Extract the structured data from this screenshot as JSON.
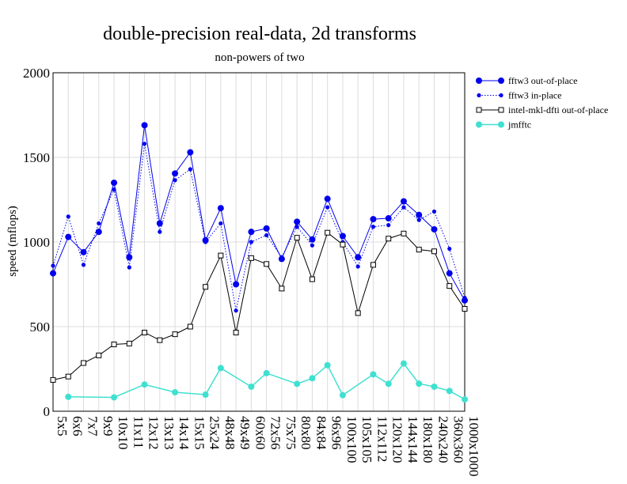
{
  "chart_data": {
    "type": "line",
    "title": "double-precision real-data, 2d transforms",
    "subtitle": "non-powers of two",
    "xlabel": "",
    "ylabel": "speed (mflops)",
    "ylim": [
      0,
      2000
    ],
    "yticks": [
      0,
      500,
      1000,
      1500,
      2000
    ],
    "grid": true,
    "legend_position": "top-right",
    "categories": [
      "5x5",
      "6x6",
      "7x7",
      "9x9",
      "10x10",
      "11x11",
      "12x12",
      "13x13",
      "14x14",
      "15x15",
      "25x24",
      "48x48",
      "49x49",
      "60x60",
      "72x56",
      "75x75",
      "80x80",
      "84x84",
      "96x96",
      "100x100",
      "105x105",
      "112x112",
      "120x120",
      "144x144",
      "180x180",
      "240x240",
      "360x360",
      "1000x1000"
    ],
    "series": [
      {
        "name": "fftw3 out-of-place",
        "color": "#0000ee",
        "style": "solid-large-dot",
        "values": [
          815,
          1030,
          940,
          1060,
          1350,
          910,
          1690,
          1110,
          1405,
          1530,
          1010,
          1200,
          750,
          1060,
          1080,
          900,
          1120,
          1015,
          1255,
          1035,
          910,
          1135,
          1140,
          1240,
          1160,
          1075,
          815,
          655
        ]
      },
      {
        "name": "fftw3 in-place",
        "color": "#0000ee",
        "style": "dotted-small-dot",
        "values": [
          860,
          1150,
          865,
          1110,
          1310,
          850,
          1580,
          1060,
          1365,
          1430,
          1000,
          1110,
          595,
          1000,
          1040,
          910,
          1090,
          980,
          1205,
          1000,
          855,
          1090,
          1100,
          1205,
          1130,
          1180,
          960,
          670
        ]
      },
      {
        "name": "intel-mkl-dfti out-of-place",
        "color": "#000000",
        "style": "solid-open-square",
        "values": [
          185,
          205,
          285,
          330,
          395,
          400,
          465,
          420,
          455,
          500,
          735,
          920,
          465,
          905,
          870,
          725,
          1025,
          780,
          1055,
          985,
          580,
          865,
          1020,
          1050,
          955,
          945,
          740,
          605
        ]
      },
      {
        "name": "jmfftc",
        "color": "#40e0d0",
        "style": "solid-large-dot",
        "values": [
          null,
          85,
          null,
          null,
          82,
          null,
          158,
          null,
          112,
          null,
          98,
          255,
          null,
          145,
          225,
          null,
          162,
          195,
          272,
          95,
          null,
          218,
          162,
          282,
          163,
          145,
          120,
          70
        ]
      }
    ]
  }
}
